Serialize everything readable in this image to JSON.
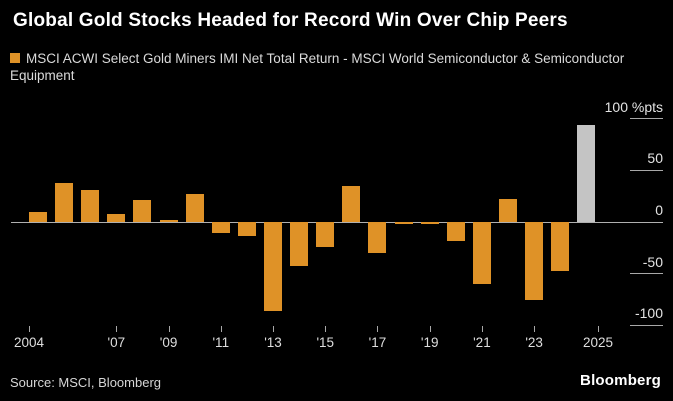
{
  "header": {
    "title": "Global Gold Stocks Headed for Record Win Over Chip Peers"
  },
  "legend": {
    "label": "MSCI ACWI Select Gold Miners IMI Net Total Return - MSCI World Semiconductor & Semiconductor Equipment",
    "swatch_color": "#DF9227"
  },
  "chart_data": {
    "type": "bar",
    "title": "Global Gold Stocks Headed for Record Win Over Chip Peers",
    "series_name": "MSCI ACWI Select Gold Miners IMI Net Total Return - MSCI World Semiconductor & Semiconductor Equipment",
    "unit_label": "%pts",
    "categories": [
      2004,
      2005,
      2006,
      2007,
      2008,
      2009,
      2010,
      2011,
      2012,
      2013,
      2014,
      2015,
      2016,
      2017,
      2018,
      2019,
      2020,
      2021,
      2022,
      2023,
      2024,
      2025
    ],
    "values": [
      10,
      38,
      31,
      8,
      21,
      2,
      27,
      -11,
      -14,
      -86,
      -43,
      -24,
      35,
      -30,
      -2,
      -2,
      -18,
      -60,
      22,
      -75,
      -47,
      94
    ],
    "highlight_category": 2025,
    "bar_color": "#DF9227",
    "highlight_color": "#C4C4C4",
    "ylim": [
      -110,
      105
    ],
    "y_ticks": [
      100,
      50,
      0,
      -50,
      -100
    ],
    "x_tick_labels": [
      "2004",
      "'07",
      "'09",
      "'11",
      "'13",
      "'15",
      "'17",
      "'19",
      "'21",
      "'23",
      "2025"
    ],
    "x_tick_years": [
      2004,
      2007,
      2009,
      2011,
      2013,
      2015,
      2017,
      2019,
      2021,
      2023,
      2025
    ],
    "grid": false,
    "legend_position": "top-left",
    "axis_side": "right"
  },
  "footer": {
    "source": "Source: MSCI, Bloomberg",
    "brand": "Bloomberg"
  }
}
